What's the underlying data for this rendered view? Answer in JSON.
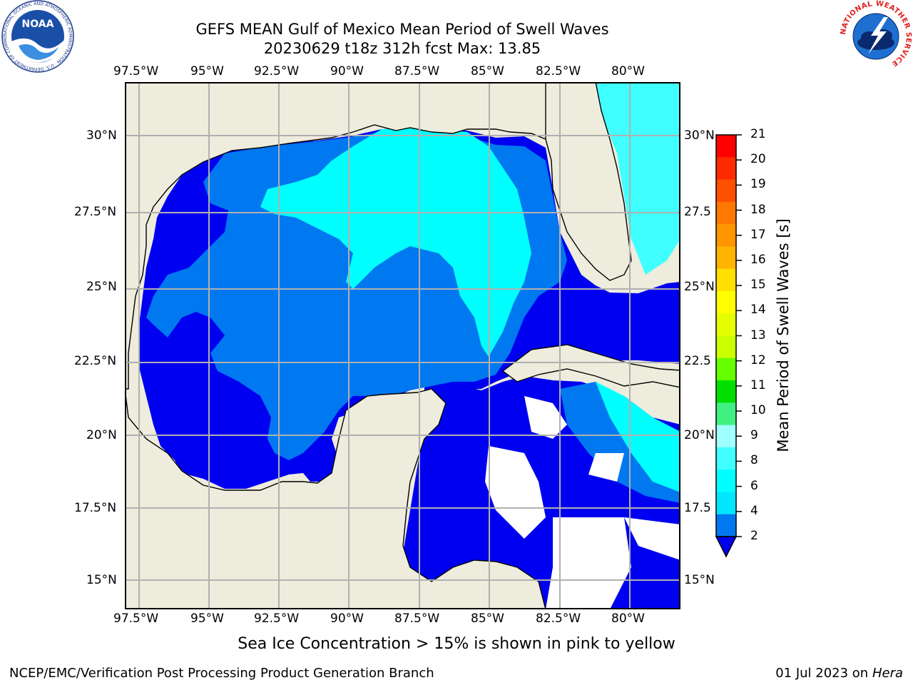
{
  "header": {
    "title_line1": "GEFS MEAN Gulf of Mexico Mean Period of Swell Waves",
    "title_line2": "20230629 t18z 312h fcst   Max: 13.85"
  },
  "logos": {
    "noaa_text": "NOAA",
    "noaa_ring_text": "NATIONAL OCEANIC AND ATMOSPHERIC ADMINISTRATION · U.S. DEPARTMENT OF COMMERCE",
    "nws_ring_text": "NATIONAL WEATHER SERVICE"
  },
  "map": {
    "lon_labels": [
      "97.5°W",
      "95°W",
      "92.5°W",
      "90°W",
      "87.5°W",
      "85°W",
      "82.5°W",
      "80°W"
    ],
    "lat_labels_left": [
      "30°N",
      "27.5°N",
      "25°N",
      "22.5°N",
      "20°N",
      "17.5°N",
      "15°N"
    ],
    "lat_labels_right": [
      "30°N",
      "27.5",
      "25°N",
      "22.5",
      "20°N",
      "17.5",
      "15°N"
    ],
    "colors": {
      "land": "#eeecdc",
      "period_2_4": "#0000f0",
      "period_4_6": "#0078f0",
      "period_6_8": "#00ffff",
      "period_8_10": "#40ffff",
      "high_10_12": "#66ff00",
      "high_12_14": "#ccff00",
      "high_14_16": "#e6ff00",
      "grid": "#b0b0b0"
    }
  },
  "colorbar": {
    "label": "Mean Period of Swell Waves [s]",
    "ticks": [
      "21",
      "20",
      "19",
      "18",
      "17",
      "16",
      "15",
      "14",
      "13",
      "12",
      "11",
      "10",
      "9",
      "8",
      "6",
      "4",
      "2"
    ],
    "colors": [
      "#ff0000",
      "#ff2a00",
      "#ff5000",
      "#ff7800",
      "#ff9600",
      "#ffb400",
      "#ffe000",
      "#ffff00",
      "#e6ff00",
      "#ccff00",
      "#66ff00",
      "#00e000",
      "#40f080",
      "#a0ffff",
      "#40ffff",
      "#00ffff",
      "#00e6ff",
      "#0078f0"
    ]
  },
  "footer": {
    "note": "Sea Ice Concentration > 15% is shown in pink to yellow",
    "credit": "NCEP/EMC/Verification Post Processing Product Generation Branch",
    "date_prefix": "01 Jul 2023 on ",
    "machine": "Hera"
  }
}
